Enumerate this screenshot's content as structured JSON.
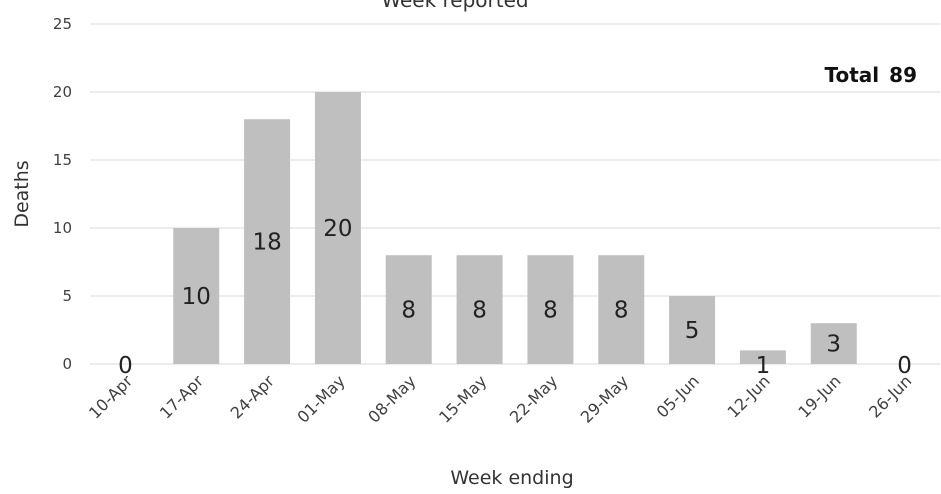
{
  "chart_data": {
    "type": "bar",
    "title": "Week reported",
    "xlabel": "Week ending",
    "ylabel": "Deaths",
    "ylim": [
      0,
      25
    ],
    "yticks": [
      0,
      5,
      10,
      15,
      20,
      25
    ],
    "grid": true,
    "categories": [
      "10-Apr",
      "17-Apr",
      "24-Apr",
      "01-May",
      "08-May",
      "15-May",
      "22-May",
      "29-May",
      "05-Jun",
      "12-Jun",
      "19-Jun",
      "26-Jun"
    ],
    "values": [
      0,
      10,
      18,
      20,
      8,
      8,
      8,
      8,
      5,
      1,
      3,
      0
    ],
    "bar_color": "#bfbfbf",
    "grid_color": "#d9d9d9",
    "total_label": "Total",
    "total_value": "89"
  }
}
